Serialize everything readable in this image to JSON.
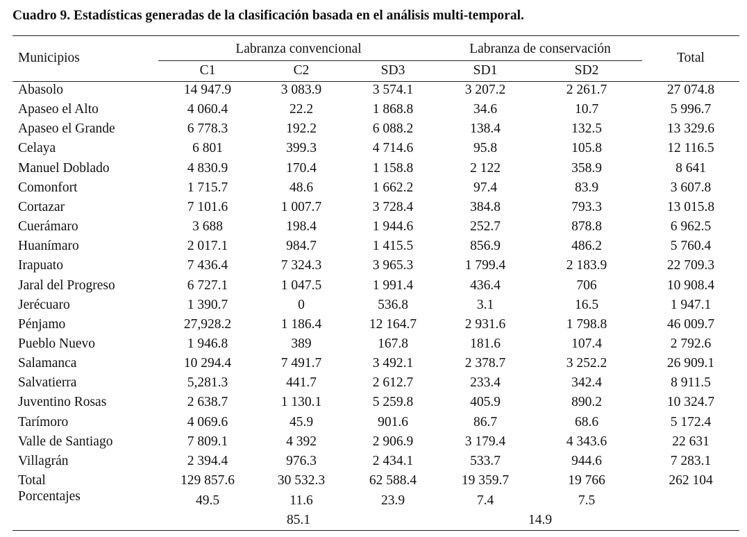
{
  "title": "Cuadro 9. Estadísticas generadas de la clasificación basada en el análisis multi-temporal.",
  "header": {
    "municipios": "Municipios",
    "group_conv": "Labranza convencional",
    "group_cons": "Labranza de conservación",
    "total": "Total",
    "columns": [
      "C1",
      "C2",
      "SD3",
      "SD1",
      "SD2"
    ]
  },
  "rows": [
    {
      "name": "Abasolo",
      "values": [
        "14 947.9",
        "3 083.9",
        "3 574.1",
        "3 207.2",
        "2 261.7",
        "27 074.8"
      ]
    },
    {
      "name": "Apaseo el Alto",
      "values": [
        "4 060.4",
        "22.2",
        "1 868.8",
        "34.6",
        "10.7",
        "5 996.7"
      ]
    },
    {
      "name": "Apaseo el Grande",
      "values": [
        "6 778.3",
        "192.2",
        "6 088.2",
        "138.4",
        "132.5",
        "13 329.6"
      ]
    },
    {
      "name": "Celaya",
      "values": [
        "6 801",
        "399.3",
        "4 714.6",
        "95.8",
        "105.8",
        "12 116.5"
      ]
    },
    {
      "name": "Manuel Doblado",
      "values": [
        "4 830.9",
        "170.4",
        "1 158.8",
        "2 122",
        "358.9",
        "8 641"
      ]
    },
    {
      "name": "Comonfort",
      "values": [
        "1 715.7",
        "48.6",
        "1 662.2",
        "97.4",
        "83.9",
        "3 607.8"
      ]
    },
    {
      "name": "Cortazar",
      "values": [
        "7 101.6",
        "1 007.7",
        "3 728.4",
        "384.8",
        "793.3",
        "13 015.8"
      ]
    },
    {
      "name": "Cuerámaro",
      "values": [
        "3 688",
        "198.4",
        "1 944.6",
        "252.7",
        "878.8",
        "6 962.5"
      ]
    },
    {
      "name": "Huanímaro",
      "values": [
        "2 017.1",
        "984.7",
        "1 415.5",
        "856.9",
        "486.2",
        "5 760.4"
      ]
    },
    {
      "name": "Irapuato",
      "values": [
        "7 436.4",
        "7 324.3",
        "3 965.3",
        "1 799.4",
        "2 183.9",
        "22 709.3"
      ]
    },
    {
      "name": "Jaral del Progreso",
      "values": [
        "6 727.1",
        "1 047.5",
        "1 991.4",
        "436.4",
        "706",
        "10 908.4"
      ]
    },
    {
      "name": "Jerécuaro",
      "values": [
        "1 390.7",
        "0",
        "536.8",
        "3.1",
        "16.5",
        "1 947.1"
      ]
    },
    {
      "name": "Pénjamo",
      "values": [
        "27,928.2",
        "1 186.4",
        "12 164.7",
        "2 931.6",
        "1 798.8",
        "46 009.7"
      ]
    },
    {
      "name": "Pueblo Nuevo",
      "values": [
        "1 946.8",
        "389",
        "167.8",
        "181.6",
        "107.4",
        "2 792.6"
      ]
    },
    {
      "name": "Salamanca",
      "values": [
        "10 294.4",
        "7 491.7",
        "3 492.1",
        "2 378.7",
        "3 252.2",
        "26 909.1"
      ]
    },
    {
      "name": "Salvatierra",
      "values": [
        "5,281.3",
        "441.7",
        "2 612.7",
        "233.4",
        "342.4",
        "8 911.5"
      ]
    },
    {
      "name": "Juventino Rosas",
      "values": [
        "2 638.7",
        "1 130.1",
        "5 259.8",
        "405.9",
        "890.2",
        "10 324.7"
      ]
    },
    {
      "name": "Tarímoro",
      "values": [
        "4 069.6",
        "45.9",
        "901.6",
        "86.7",
        "68.6",
        "5 172.4"
      ]
    },
    {
      "name": "Valle de Santiago",
      "values": [
        "7 809.1",
        "4 392",
        "2 906.9",
        "3 179.4",
        "4 343.6",
        "22 631"
      ]
    },
    {
      "name": "Villagrán",
      "values": [
        "2 394.4",
        "976.3",
        "2 434.1",
        "533.7",
        "944.6",
        "7 283.1"
      ]
    },
    {
      "name": "Total",
      "values": [
        "129 857.6",
        "30 532.3",
        "62 588.4",
        "19 359.7",
        "19 766",
        "262 104"
      ]
    }
  ],
  "percentages": {
    "label": "Porcentajes",
    "values": [
      "49.5",
      "11.6",
      "23.9",
      "7.4",
      "7.5"
    ],
    "group_conv": "85.1",
    "group_cons": "14.9"
  }
}
